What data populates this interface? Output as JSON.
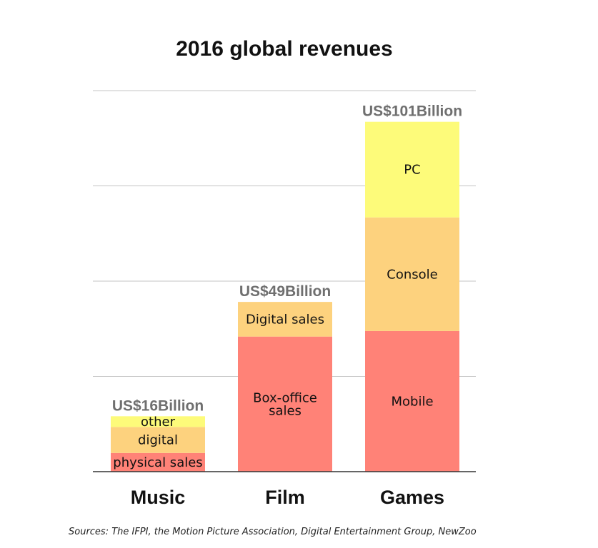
{
  "chart_data": {
    "type": "bar",
    "stacked": true,
    "title": "2016 global revenues",
    "source": "Sources: The IFPI, the Motion Picture Association, Digital Entertainment Group, NewZoo",
    "xlabel": "",
    "ylabel": "",
    "ylim": [
      0,
      110
    ],
    "grid": true,
    "legend": "none",
    "categories": [
      {
        "name": "Music",
        "total": 16,
        "total_label": "US$16Billion",
        "segments": [
          {
            "label": "physical sales",
            "value": 5.4,
            "color": "#ff8277"
          },
          {
            "label": "digital",
            "value": 7.5,
            "color": "#fdd27e"
          },
          {
            "label": "other",
            "value": 3.1,
            "color": "#fdfb7a"
          }
        ]
      },
      {
        "name": "Film",
        "total": 49,
        "total_label": "US$49Billion",
        "segments": [
          {
            "label": "Box-office\nsales",
            "value": 39,
            "color": "#ff8277"
          },
          {
            "label": "Digital sales",
            "value": 10,
            "color": "#fdd27e"
          }
        ]
      },
      {
        "name": "Games",
        "total": 101,
        "total_label": "US$101Billion",
        "segments": [
          {
            "label": "Mobile",
            "value": 40.6,
            "color": "#ff8277"
          },
          {
            "label": "Console",
            "value": 32.8,
            "color": "#fdd27e"
          },
          {
            "label": "PC",
            "value": 27.6,
            "color": "#fdfb7a"
          }
        ]
      }
    ]
  }
}
